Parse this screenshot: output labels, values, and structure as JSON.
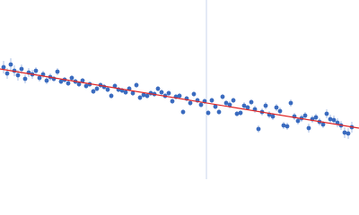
{
  "chart_data": {
    "type": "scatter",
    "xlim": [
      0,
      400
    ],
    "ylim": [
      0,
      200
    ],
    "vline": 230,
    "vline_color": "#c9d5ee",
    "fit": {
      "color": "#e02424",
      "x": [
        0,
        400
      ],
      "values": [
        123,
        57
      ]
    },
    "series": [
      {
        "color": "#3a6bbf",
        "error_color": "#a9bfe4",
        "x": [
          4,
          8,
          12,
          16,
          20,
          24,
          28,
          32,
          36,
          40,
          44,
          48,
          52,
          56,
          60,
          64,
          68,
          72,
          76,
          80,
          84,
          88,
          92,
          96,
          100,
          104,
          108,
          112,
          116,
          120,
          124,
          128,
          132,
          136,
          140,
          144,
          148,
          152,
          156,
          160,
          164,
          168,
          172,
          176,
          180,
          184,
          188,
          192,
          196,
          200,
          204,
          208,
          212,
          216,
          220,
          224,
          228,
          232,
          236,
          240,
          244,
          248,
          252,
          256,
          260,
          264,
          268,
          272,
          276,
          280,
          284,
          288,
          292,
          296,
          300,
          304,
          308,
          312,
          316,
          320,
          324,
          328,
          332,
          336,
          340,
          344,
          348,
          352,
          356,
          360,
          364,
          368,
          372,
          376,
          380,
          384,
          388,
          392
        ],
        "values": [
          125,
          118,
          128,
          121,
          116,
          123,
          112,
          119,
          117,
          121,
          113,
          117,
          110,
          114,
          112,
          120,
          109,
          111,
          107,
          113,
          109,
          106,
          110,
          104,
          106,
          98,
          101,
          105,
          103,
          100,
          93,
          104,
          100,
          99,
          97,
          101,
          96,
          105,
          91,
          94,
          93,
          96,
          95,
          101,
          97,
          93,
          96,
          87,
          92,
          93,
          75,
          90,
          85,
          95,
          88,
          83,
          87,
          74,
          88,
          81,
          75,
          92,
          85,
          83,
          88,
          73,
          74,
          82,
          80,
          86,
          78,
          56,
          75,
          82,
          72,
          70,
          80,
          76,
          60,
          59,
          85,
          70,
          65,
          68,
          71,
          57,
          67,
          69,
          64,
          61,
          73,
          67,
          66,
          63,
          60,
          52,
          51,
          58
        ],
        "errors": [
          7,
          6,
          7,
          6,
          6,
          5,
          5,
          5,
          5,
          4,
          4,
          4,
          4,
          4,
          3,
          4,
          3,
          3,
          3,
          3,
          3,
          3,
          3,
          3,
          3,
          3,
          3,
          3,
          3,
          3,
          3,
          3,
          3,
          3,
          3,
          3,
          3,
          3,
          3,
          3,
          3,
          3,
          3,
          3,
          3,
          3,
          3,
          3,
          3,
          3,
          3,
          3,
          3,
          3,
          3,
          3,
          3,
          3,
          3,
          3,
          3,
          3,
          3,
          4,
          3,
          3,
          3,
          4,
          3,
          3,
          4,
          4,
          4,
          4,
          4,
          4,
          4,
          4,
          4,
          4,
          4,
          4,
          4,
          4,
          4,
          5,
          4,
          4,
          4,
          4,
          5,
          5,
          5,
          5,
          5,
          6,
          6,
          6
        ]
      }
    ]
  }
}
